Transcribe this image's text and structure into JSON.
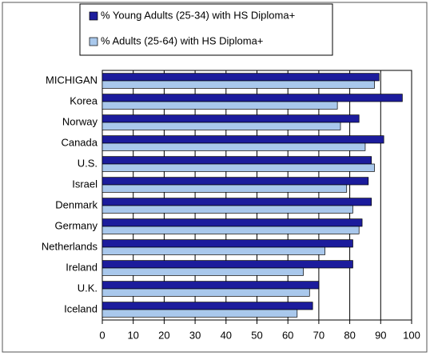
{
  "chart_data": {
    "type": "bar",
    "orientation": "horizontal",
    "categories": [
      "MICHIGAN",
      "Korea",
      "Norway",
      "Canada",
      "U.S.",
      "Israel",
      "Denmark",
      "Germany",
      "Netherlands",
      "Ireland",
      "U.K.",
      "Iceland"
    ],
    "series": [
      {
        "name": "% Young Adults (25-34) with HS Diploma+",
        "color": "#1c1c9c",
        "values": [
          89.5,
          97,
          83,
          91,
          87,
          86,
          87,
          84,
          81,
          81,
          70,
          68
        ]
      },
      {
        "name": "% Adults (25-64) with HS Diploma+",
        "color": "#a9c8ec",
        "values": [
          88,
          76,
          77,
          85,
          88,
          79,
          81,
          83,
          72,
          65,
          67,
          63
        ]
      }
    ],
    "xlim": [
      0,
      100
    ],
    "xticks": [
      0,
      10,
      20,
      30,
      40,
      50,
      60,
      70,
      80,
      90,
      100
    ],
    "grid": true,
    "legend": "top"
  }
}
